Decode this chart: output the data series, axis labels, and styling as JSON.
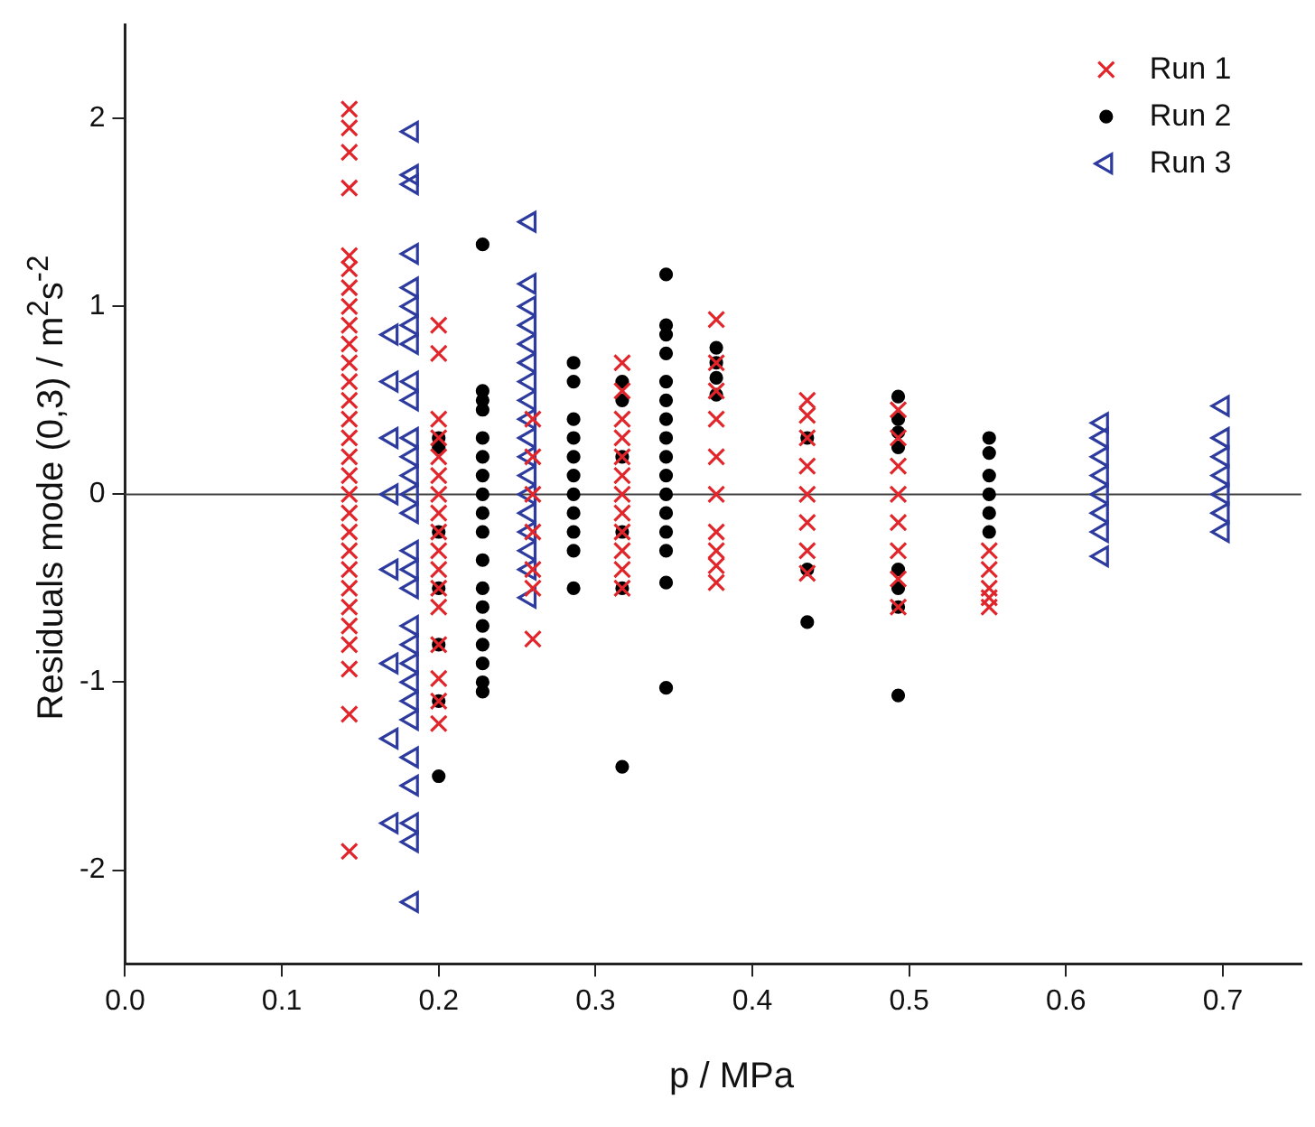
{
  "chart_data": {
    "type": "scatter",
    "xlabel": "p / MPa",
    "ylabel": "Residuals mode (0,3) / m$^{2}$s$^{-2}$",
    "xlim": [
      0,
      0.75
    ],
    "ylim": [
      -2.5,
      2.5
    ],
    "xticks": [
      {
        "value": 0,
        "label": "0.0"
      },
      0.1,
      0.2,
      0.3,
      0.4,
      0.5,
      0.6,
      0.7
    ],
    "yticks": [
      -2,
      -1,
      0,
      1,
      2
    ],
    "grid": false,
    "legend": "top right",
    "ref_lines": [
      {
        "axis": "y",
        "value": 0,
        "color": "#404040"
      }
    ],
    "series": [
      {
        "name": "Run 1",
        "color": "#e0262b",
        "marker": "cross",
        "x": [
          0.143,
          0.143,
          0.143,
          0.143,
          0.143,
          0.143,
          0.143,
          0.143,
          0.143,
          0.143,
          0.143,
          0.143,
          0.143,
          0.143,
          0.143,
          0.143,
          0.143,
          0.143,
          0.143,
          0.143,
          0.143,
          0.143,
          0.143,
          0.143,
          0.143,
          0.143,
          0.143,
          0.143,
          0.143,
          0.2,
          0.2,
          0.2,
          0.2,
          0.2,
          0.2,
          0.2,
          0.2,
          0.2,
          0.2,
          0.2,
          0.2,
          0.2,
          0.2,
          0.2,
          0.2,
          0.2,
          0.26,
          0.26,
          0.26,
          0.26,
          0.26,
          0.26,
          0.26,
          0.317,
          0.317,
          0.317,
          0.317,
          0.317,
          0.317,
          0.317,
          0.317,
          0.317,
          0.317,
          0.317,
          0.317,
          0.377,
          0.377,
          0.377,
          0.377,
          0.377,
          0.377,
          0.377,
          0.377,
          0.377,
          0.377,
          0.435,
          0.435,
          0.435,
          0.435,
          0.435,
          0.435,
          0.435,
          0.435,
          0.493,
          0.493,
          0.493,
          0.493,
          0.493,
          0.493,
          0.493,
          0.493,
          0.551,
          0.551,
          0.551,
          0.551,
          0.551
        ],
        "values": [
          2.05,
          1.95,
          1.82,
          1.63,
          1.27,
          1.2,
          1.1,
          1.0,
          0.9,
          0.8,
          0.7,
          0.6,
          0.5,
          0.4,
          0.3,
          0.2,
          0.1,
          0.0,
          -0.1,
          -0.2,
          -0.3,
          -0.4,
          -0.5,
          -0.6,
          -0.7,
          -0.8,
          -0.93,
          -1.17,
          -1.9,
          0.9,
          0.75,
          0.4,
          0.3,
          0.2,
          0.1,
          0,
          -0.1,
          -0.2,
          -0.3,
          -0.4,
          -0.5,
          -0.6,
          -0.8,
          -0.98,
          -1.1,
          -1.22,
          0.4,
          0.2,
          0,
          -0.2,
          -0.4,
          -0.5,
          -0.77,
          0.7,
          0.55,
          0.4,
          0.3,
          0.2,
          0.1,
          0,
          -0.1,
          -0.2,
          -0.3,
          -0.4,
          -0.5,
          0.93,
          0.7,
          0.55,
          0.4,
          0.2,
          0,
          -0.2,
          -0.3,
          -0.38,
          -0.47,
          0.5,
          0.42,
          0.3,
          0.15,
          0,
          -0.15,
          -0.3,
          -0.42,
          0.45,
          0.3,
          0.15,
          0,
          -0.15,
          -0.3,
          -0.45,
          -0.6,
          -0.3,
          -0.4,
          -0.5,
          -0.55,
          -0.6
        ]
      },
      {
        "name": "Run 2",
        "color": "#000000",
        "marker": "circle",
        "x": [
          0.2,
          0.2,
          0.2,
          0.2,
          0.2,
          0.2,
          0.2,
          0.228,
          0.228,
          0.228,
          0.228,
          0.228,
          0.228,
          0.228,
          0.228,
          0.228,
          0.228,
          0.228,
          0.228,
          0.228,
          0.228,
          0.228,
          0.228,
          0.228,
          0.228,
          0.286,
          0.286,
          0.286,
          0.286,
          0.286,
          0.286,
          0.286,
          0.286,
          0.286,
          0.286,
          0.286,
          0.317,
          0.317,
          0.317,
          0.317,
          0.317,
          0.317,
          0.345,
          0.345,
          0.345,
          0.345,
          0.345,
          0.345,
          0.345,
          0.345,
          0.345,
          0.345,
          0.345,
          0.345,
          0.345,
          0.345,
          0.345,
          0.345,
          0.377,
          0.377,
          0.377,
          0.377,
          0.435,
          0.435,
          0.435,
          0.493,
          0.493,
          0.493,
          0.493,
          0.493,
          0.493,
          0.493,
          0.493,
          0.551,
          0.551,
          0.551,
          0.551,
          0.551,
          0.551
        ],
        "values": [
          0.3,
          0.25,
          -0.2,
          -0.5,
          -0.8,
          -1.1,
          -1.5,
          1.33,
          0.55,
          0.5,
          0.45,
          0.3,
          0.2,
          0.1,
          0,
          -0.1,
          -0.2,
          -0.35,
          -0.5,
          -0.6,
          -0.7,
          -0.8,
          -0.9,
          -1.0,
          -1.05,
          0.7,
          0.6,
          0.4,
          0.3,
          0.2,
          0.1,
          0,
          -0.1,
          -0.2,
          -0.3,
          -0.5,
          0.6,
          0.5,
          0.2,
          -0.2,
          -0.5,
          -1.45,
          1.17,
          0.9,
          0.85,
          0.75,
          0.6,
          0.5,
          0.4,
          0.3,
          0.2,
          0.1,
          0,
          -0.1,
          -0.2,
          -0.3,
          -0.47,
          -1.03,
          0.78,
          0.7,
          0.62,
          0.53,
          0.3,
          -0.4,
          -0.68,
          0.52,
          0.4,
          0.33,
          0.25,
          -0.4,
          -0.5,
          -0.6,
          -1.07,
          0.3,
          0.22,
          0.1,
          0,
          -0.1,
          -0.2
        ]
      },
      {
        "name": "Run 3",
        "color": "#2e3b9e",
        "marker": "triangle",
        "x": [
          0.183,
          0.183,
          0.183,
          0.183,
          0.183,
          0.183,
          0.183,
          0.183,
          0.183,
          0.183,
          0.183,
          0.183,
          0.183,
          0.183,
          0.183,
          0.183,
          0.183,
          0.183,
          0.183,
          0.183,
          0.183,
          0.183,
          0.183,
          0.183,
          0.183,
          0.183,
          0.183,
          0.183,
          0.183,
          0.17,
          0.17,
          0.17,
          0.17,
          0.17,
          0.17,
          0.17,
          0.17,
          0.258,
          0.258,
          0.258,
          0.258,
          0.258,
          0.258,
          0.258,
          0.258,
          0.258,
          0.258,
          0.258,
          0.258,
          0.258,
          0.258,
          0.258,
          0.258,
          0.258,
          0.258,
          0.623,
          0.623,
          0.623,
          0.623,
          0.623,
          0.623,
          0.623,
          0.623,
          0.7,
          0.7,
          0.7,
          0.7,
          0.7,
          0.7,
          0.7
        ],
        "values": [
          1.93,
          1.7,
          1.65,
          1.28,
          1.1,
          1.0,
          0.9,
          0.8,
          0.6,
          0.5,
          0.3,
          0.2,
          0.1,
          0,
          -0.1,
          -0.3,
          -0.4,
          -0.5,
          -0.7,
          -0.8,
          -0.9,
          -1.0,
          -1.1,
          -1.2,
          -1.4,
          -1.55,
          -1.75,
          -1.85,
          -2.17,
          0.85,
          0.6,
          0.3,
          0,
          -0.4,
          -0.9,
          -1.3,
          -1.75,
          1.45,
          1.12,
          1.0,
          0.9,
          0.8,
          0.7,
          0.6,
          0.5,
          0.4,
          0.3,
          0.2,
          0.1,
          0,
          -0.1,
          -0.2,
          -0.3,
          -0.4,
          -0.55,
          0.38,
          0.3,
          0.2,
          0.1,
          0,
          -0.1,
          -0.2,
          -0.33,
          0.47,
          0.3,
          0.2,
          0.1,
          0,
          -0.1,
          -0.2
        ]
      }
    ]
  }
}
